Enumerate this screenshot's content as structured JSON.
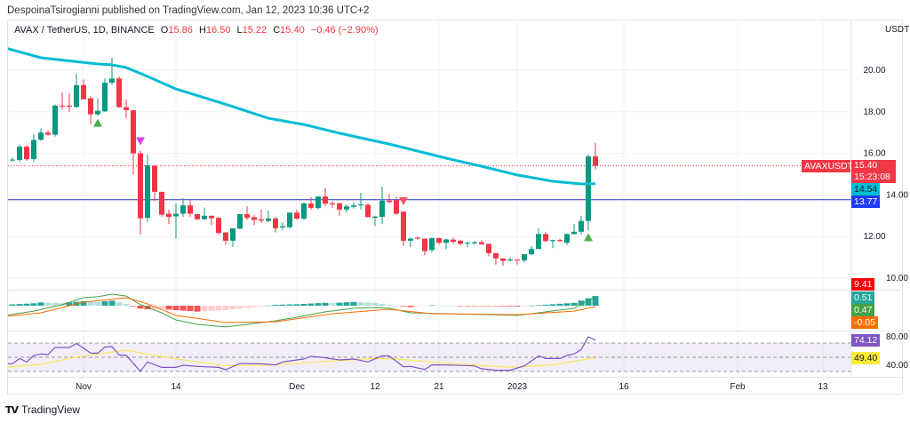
{
  "published_line": "DespoinaTsirogianni published on TradingView.com, Jan 12, 2023 10:36 UTC+2",
  "legend": {
    "symbol": "AVAX / TetherUS, 1D, BINANCE",
    "open_label": "O",
    "open": "15.86",
    "high_label": "H",
    "high": "16.50",
    "low_label": "L",
    "low": "15.22",
    "close_label": "C",
    "close": "15.40",
    "change": "−0.46 (−2.90%)"
  },
  "currency": "USDT",
  "colors": {
    "up": "#089981",
    "down": "#f23645",
    "ema": "#00bcd4",
    "hline": "#2436c8",
    "macd": "#43a047",
    "signal": "#ff6d00",
    "hist_up": "#26a69a",
    "hist_up_light": "#b2dfdb",
    "hist_down": "#ff5252",
    "hist_down_light": "#ffcdd2",
    "rsi": "#7e57c2",
    "rsi_ma": "#fbe75a"
  },
  "price_ticks": [
    "20.00",
    "18.00",
    "16.00",
    "14.00",
    "12.00",
    "10.00"
  ],
  "rsi_ticks": [
    "80.00",
    "40.00"
  ],
  "time_ticks": [
    {
      "label": "Nov",
      "date": "2022-11-01"
    },
    {
      "label": "14",
      "date": "2022-11-14"
    },
    {
      "label": "Dec",
      "date": "2022-12-01"
    },
    {
      "label": "12",
      "date": "2022-12-12"
    },
    {
      "label": "21",
      "date": "2022-12-21"
    },
    {
      "label": "2023",
      "date": "2023-01-01"
    },
    {
      "label": "16",
      "date": "2023-01-16"
    },
    {
      "label": "Feb",
      "date": "2023-02-01"
    },
    {
      "label": "13",
      "date": "2023-02-13"
    }
  ],
  "axis_labels": {
    "symbol_tag": "AVAXUSDT",
    "last_price": "15.40",
    "countdown": "15:23:08",
    "ema_value": "14.54",
    "hline_value": "13.77",
    "red_level": "9.41",
    "macd_hist": "0.51",
    "macd": "0.47",
    "macd_signal": "-0.05",
    "rsi": "74.12",
    "rsi_ma": "49.40"
  },
  "chart_data": {
    "type": "candlestick",
    "interval": "1D",
    "start": "2022-10-22",
    "ohlc": [
      [
        15.7,
        15.8,
        15.6,
        15.7
      ],
      [
        15.68,
        16.42,
        15.6,
        16.32
      ],
      [
        16.32,
        16.4,
        15.65,
        15.72
      ],
      [
        15.73,
        16.9,
        15.6,
        16.65
      ],
      [
        16.65,
        17.2,
        16.6,
        17.0
      ],
      [
        17.0,
        17.1,
        16.85,
        16.9
      ],
      [
        16.9,
        18.35,
        16.8,
        18.3
      ],
      [
        18.3,
        18.93,
        18.1,
        18.26
      ],
      [
        18.3,
        18.9,
        18.0,
        18.25
      ],
      [
        18.23,
        19.83,
        18.2,
        19.28
      ],
      [
        19.29,
        19.55,
        18.6,
        18.6
      ],
      [
        18.65,
        18.75,
        17.4,
        17.88
      ],
      [
        17.88,
        18.65,
        17.8,
        18.05
      ],
      [
        18.02,
        19.6,
        18.0,
        19.4
      ],
      [
        19.4,
        20.6,
        19.3,
        19.6
      ],
      [
        19.6,
        19.7,
        18.2,
        18.22
      ],
      [
        18.22,
        18.6,
        17.7,
        18.08
      ],
      [
        18.07,
        18.1,
        15.0,
        16.0
      ],
      [
        16.0,
        16.15,
        12.1,
        12.88
      ],
      [
        12.9,
        15.95,
        12.7,
        15.43
      ],
      [
        15.4,
        15.45,
        13.7,
        14.15
      ],
      [
        14.15,
        14.15,
        12.95,
        13.05
      ],
      [
        13.1,
        13.3,
        12.6,
        12.95
      ],
      [
        12.97,
        13.6,
        11.9,
        13.1
      ],
      [
        13.1,
        13.85,
        12.95,
        13.5
      ],
      [
        13.5,
        13.75,
        12.95,
        13.1
      ],
      [
        13.08,
        13.1,
        12.8,
        12.83
      ],
      [
        12.83,
        13.4,
        12.83,
        13.0
      ],
      [
        13.0,
        13.0,
        12.55,
        12.88
      ],
      [
        12.9,
        12.95,
        12.1,
        12.17
      ],
      [
        12.2,
        12.2,
        11.6,
        11.8
      ],
      [
        11.8,
        12.4,
        11.5,
        12.4
      ],
      [
        12.38,
        13.1,
        12.35,
        13.08
      ],
      [
        13.08,
        13.45,
        12.8,
        12.9
      ],
      [
        12.93,
        13.05,
        12.55,
        12.8
      ],
      [
        12.83,
        13.3,
        12.65,
        12.77
      ],
      [
        12.75,
        13.25,
        12.7,
        12.87
      ],
      [
        12.87,
        12.95,
        12.2,
        12.4
      ],
      [
        12.44,
        12.7,
        12.3,
        12.5
      ],
      [
        12.45,
        13.15,
        12.4,
        13.15
      ],
      [
        13.15,
        13.3,
        12.8,
        12.86
      ],
      [
        12.86,
        13.65,
        12.8,
        13.59
      ],
      [
        13.59,
        13.9,
        13.3,
        13.38
      ],
      [
        13.37,
        13.93,
        13.3,
        13.93
      ],
      [
        13.93,
        14.35,
        13.45,
        13.59
      ],
      [
        13.6,
        13.7,
        13.37,
        13.55
      ],
      [
        13.6,
        13.62,
        13.0,
        13.3
      ],
      [
        13.3,
        13.55,
        13.15,
        13.45
      ],
      [
        13.43,
        13.65,
        13.35,
        13.5
      ],
      [
        13.5,
        14.1,
        13.3,
        13.55
      ],
      [
        13.53,
        13.6,
        12.93,
        12.93
      ],
      [
        12.9,
        13.0,
        12.5,
        12.96
      ],
      [
        12.95,
        14.4,
        12.6,
        13.73
      ],
      [
        13.73,
        14.05,
        13.6,
        13.66
      ],
      [
        13.75,
        13.92,
        13.05,
        13.1
      ],
      [
        13.2,
        13.22,
        11.55,
        11.8
      ],
      [
        11.8,
        11.95,
        11.5,
        11.9
      ],
      [
        11.95,
        12.0,
        11.85,
        11.9
      ],
      [
        11.9,
        11.9,
        11.1,
        11.3
      ],
      [
        11.35,
        11.95,
        11.25,
        11.93
      ],
      [
        11.93,
        11.95,
        11.6,
        11.7
      ],
      [
        11.7,
        11.9,
        11.4,
        11.86
      ],
      [
        11.85,
        11.95,
        11.65,
        11.75
      ],
      [
        11.8,
        11.85,
        11.6,
        11.65
      ],
      [
        11.67,
        11.75,
        11.5,
        11.7
      ],
      [
        11.68,
        11.78,
        11.6,
        11.73
      ],
      [
        11.73,
        11.82,
        11.6,
        11.63
      ],
      [
        11.65,
        11.65,
        11.05,
        11.2
      ],
      [
        11.2,
        11.2,
        10.65,
        10.95
      ],
      [
        10.95,
        10.95,
        10.6,
        10.83
      ],
      [
        10.85,
        11.0,
        10.8,
        10.9
      ],
      [
        10.9,
        10.9,
        10.65,
        10.85
      ],
      [
        10.85,
        11.15,
        10.75,
        11.15
      ],
      [
        11.15,
        11.55,
        11.1,
        11.4
      ],
      [
        11.4,
        12.4,
        11.4,
        12.12
      ],
      [
        12.12,
        12.23,
        11.75,
        11.78
      ],
      [
        11.78,
        11.85,
        11.45,
        11.83
      ],
      [
        11.83,
        11.9,
        11.75,
        11.78
      ],
      [
        11.7,
        12.15,
        11.6,
        12.12
      ],
      [
        12.12,
        12.6,
        12.1,
        12.23
      ],
      [
        12.23,
        13.0,
        12.1,
        12.75
      ],
      [
        12.75,
        15.95,
        12.3,
        15.86
      ],
      [
        15.86,
        16.5,
        15.22,
        15.4
      ]
    ],
    "ema": [
      [
        "2022-10-21",
        21.07
      ],
      [
        "2022-10-26",
        20.6
      ],
      [
        "2022-11-03",
        20.3
      ],
      [
        "2022-11-05",
        20.26
      ],
      [
        "2022-11-07",
        20.13
      ],
      [
        "2022-11-10",
        19.7
      ],
      [
        "2022-11-14",
        19.1
      ],
      [
        "2022-11-22",
        18.25
      ],
      [
        "2022-11-27",
        17.69
      ],
      [
        "2022-12-02",
        17.39
      ],
      [
        "2022-12-07",
        16.97
      ],
      [
        "2022-12-14",
        16.45
      ],
      [
        "2022-12-22",
        15.77
      ],
      [
        "2022-12-27",
        15.38
      ],
      [
        "2023-01-01",
        14.96
      ],
      [
        "2023-01-06",
        14.66
      ],
      [
        "2023-01-10",
        14.53
      ],
      [
        "2023-01-12",
        14.54
      ]
    ],
    "horizontal_line": 13.77,
    "markers": [
      {
        "date": "2022-11-03",
        "price": 17.45,
        "shape": "triangle-up",
        "color": "#4caf50"
      },
      {
        "date": "2022-11-09",
        "price": 16.6,
        "shape": "triangle-down",
        "color": "#e040fb"
      },
      {
        "date": "2022-12-16",
        "price": 13.72,
        "shape": "triangle-down",
        "color": "#f7525f"
      },
      {
        "date": "2023-01-11",
        "price": 11.95,
        "shape": "triangle-up",
        "color": "#4caf50"
      }
    ],
    "macd": [
      [
        "2022-10-21",
        -0.52
      ],
      [
        "2022-10-25",
        -0.29
      ],
      [
        "2022-10-29",
        0.05
      ],
      [
        "2022-11-01",
        0.43
      ],
      [
        "2022-11-03",
        0.48
      ],
      [
        "2022-11-05",
        0.62
      ],
      [
        "2022-11-07",
        0.52
      ],
      [
        "2022-11-09",
        0.05
      ],
      [
        "2022-11-12",
        -0.38
      ],
      [
        "2022-11-14",
        -0.76
      ],
      [
        "2022-11-17",
        -1.0
      ],
      [
        "2022-11-21",
        -1.14
      ],
      [
        "2022-11-24",
        -1.0
      ],
      [
        "2022-11-28",
        -0.81
      ],
      [
        "2022-12-01",
        -0.62
      ],
      [
        "2022-12-05",
        -0.33
      ],
      [
        "2022-12-09",
        -0.14
      ],
      [
        "2022-12-12",
        -0.1
      ],
      [
        "2022-12-14",
        -0.14
      ],
      [
        "2022-12-17",
        -0.38
      ],
      [
        "2022-12-22",
        -0.43
      ],
      [
        "2023-01-01",
        -0.52
      ],
      [
        "2023-01-04",
        -0.38
      ],
      [
        "2023-01-09",
        -0.14
      ],
      [
        "2023-01-12",
        0.47
      ]
    ],
    "signal": [
      [
        "2022-10-21",
        -0.57
      ],
      [
        "2022-10-26",
        -0.38
      ],
      [
        "2022-11-01",
        0.19
      ],
      [
        "2022-11-07",
        0.43
      ],
      [
        "2022-11-10",
        0.1
      ],
      [
        "2022-11-14",
        -0.52
      ],
      [
        "2022-11-21",
        -0.9
      ],
      [
        "2022-11-28",
        -0.86
      ],
      [
        "2022-12-06",
        -0.43
      ],
      [
        "2022-12-14",
        -0.19
      ],
      [
        "2022-12-20",
        -0.43
      ],
      [
        "2023-01-01",
        -0.48
      ],
      [
        "2023-01-09",
        -0.29
      ],
      [
        "2023-01-12",
        -0.05
      ]
    ],
    "rsi": [
      [
        "2022-10-21",
        40.8
      ],
      [
        "2022-10-22",
        40.8
      ],
      [
        "2022-10-23",
        48.3
      ],
      [
        "2022-10-24",
        43.4
      ],
      [
        "2022-10-25",
        52.5
      ],
      [
        "2022-10-26",
        54.6
      ],
      [
        "2022-10-27",
        53.75
      ],
      [
        "2022-10-28",
        63.75
      ],
      [
        "2022-10-30",
        63.75
      ],
      [
        "2022-10-31",
        69.2
      ],
      [
        "2022-11-01",
        62.9
      ],
      [
        "2022-11-02",
        55.8
      ],
      [
        "2022-11-03",
        55.8
      ],
      [
        "2022-11-04",
        64.2
      ],
      [
        "2022-11-05",
        65.0
      ],
      [
        "2022-11-06",
        53.3
      ],
      [
        "2022-11-07",
        52.5
      ],
      [
        "2022-11-09",
        30.4
      ],
      [
        "2022-11-10",
        43.4
      ],
      [
        "2022-11-12",
        35.8
      ],
      [
        "2022-11-14",
        35.8
      ],
      [
        "2022-11-15",
        38.75
      ],
      [
        "2022-11-17",
        37.1
      ],
      [
        "2022-11-20",
        35.8
      ],
      [
        "2022-11-21",
        32.5
      ],
      [
        "2022-11-23",
        41.25
      ],
      [
        "2022-11-26",
        40.8
      ],
      [
        "2022-11-28",
        39.2
      ],
      [
        "2022-11-29",
        43.4
      ],
      [
        "2022-12-01",
        46.25
      ],
      [
        "2022-12-02",
        47.5
      ],
      [
        "2022-12-03",
        51.25
      ],
      [
        "2022-12-05",
        49.2
      ],
      [
        "2022-12-07",
        46.25
      ],
      [
        "2022-12-09",
        47.5
      ],
      [
        "2022-12-11",
        43.4
      ],
      [
        "2022-12-13",
        52.1
      ],
      [
        "2022-12-14",
        51.7
      ],
      [
        "2022-12-16",
        36.7
      ],
      [
        "2022-12-17",
        37.1
      ],
      [
        "2022-12-19",
        32.9
      ],
      [
        "2022-12-20",
        39.2
      ],
      [
        "2022-12-22",
        39.2
      ],
      [
        "2022-12-26",
        37.9
      ],
      [
        "2022-12-27",
        33.75
      ],
      [
        "2022-12-29",
        31.7
      ],
      [
        "2022-12-31",
        31.7
      ],
      [
        "2023-01-02",
        37.9
      ],
      [
        "2023-01-04",
        51.7
      ],
      [
        "2023-01-05",
        48.3
      ],
      [
        "2023-01-07",
        48.3
      ],
      [
        "2023-01-08",
        52.5
      ],
      [
        "2023-01-09",
        54.6
      ],
      [
        "2023-01-10",
        60.8
      ],
      [
        "2023-01-11",
        78.75
      ],
      [
        "2023-01-12",
        74.12
      ]
    ],
    "rsi_ma": [
      [
        "2022-10-21",
        35.8
      ],
      [
        "2022-10-26",
        40.0
      ],
      [
        "2022-10-31",
        50.4
      ],
      [
        "2022-11-07",
        60.0
      ],
      [
        "2022-11-11",
        52.5
      ],
      [
        "2022-11-17",
        43.4
      ],
      [
        "2022-11-21",
        37.9
      ],
      [
        "2022-11-28",
        39.2
      ],
      [
        "2022-12-03",
        42.9
      ],
      [
        "2022-12-12",
        48.3
      ],
      [
        "2022-12-15",
        47.5
      ],
      [
        "2022-12-20",
        43.4
      ],
      [
        "2022-12-31",
        35.8
      ],
      [
        "2023-01-06",
        39.2
      ],
      [
        "2023-01-12",
        49.4
      ]
    ],
    "rsi_bands": [
      70,
      50,
      30
    ]
  },
  "branding": "TradingView"
}
